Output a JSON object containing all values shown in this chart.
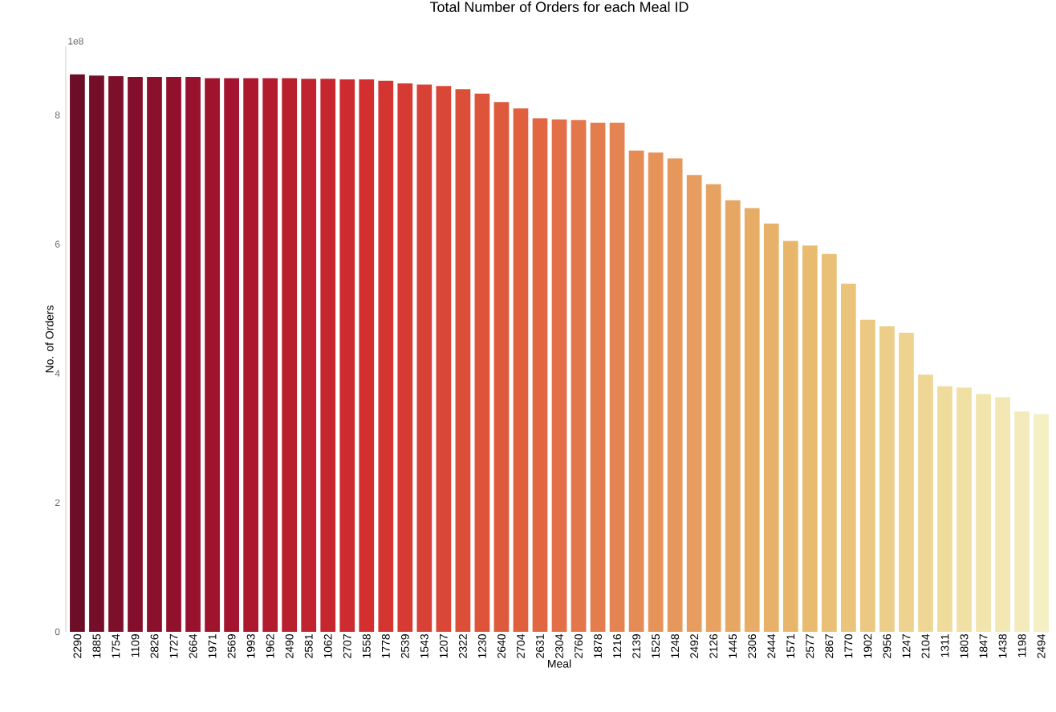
{
  "chart_data": {
    "type": "bar",
    "title": "Total Number of Orders for each Meal ID",
    "xlabel": "Meal",
    "ylabel": "No. of Orders",
    "annotations": [
      "1e8"
    ],
    "categories": [
      "2290",
      "1885",
      "1754",
      "1109",
      "2826",
      "1727",
      "2664",
      "1971",
      "2569",
      "1993",
      "1962",
      "2490",
      "2581",
      "1062",
      "2707",
      "1558",
      "1778",
      "2539",
      "1543",
      "1207",
      "2322",
      "1230",
      "2640",
      "2704",
      "2631",
      "2304",
      "2760",
      "1878",
      "1216",
      "2139",
      "1525",
      "1248",
      "2492",
      "2126",
      "1445",
      "2306",
      "2444",
      "1571",
      "2577",
      "2867",
      "1770",
      "1902",
      "2956",
      "1247",
      "2104",
      "1311",
      "1803",
      "1847",
      "1438",
      "1198",
      "2494"
    ],
    "values": [
      8.63,
      8.61,
      8.6,
      8.59,
      8.59,
      8.59,
      8.59,
      8.57,
      8.57,
      8.57,
      8.57,
      8.57,
      8.56,
      8.56,
      8.55,
      8.55,
      8.53,
      8.49,
      8.47,
      8.45,
      8.4,
      8.33,
      8.2,
      8.1,
      7.95,
      7.93,
      7.92,
      7.88,
      7.88,
      7.45,
      7.42,
      7.33,
      7.07,
      6.93,
      6.68,
      6.56,
      6.32,
      6.05,
      5.98,
      5.85,
      5.39,
      4.83,
      4.73,
      4.63,
      3.98,
      3.8,
      3.78,
      3.68,
      3.63,
      3.41,
      3.37
    ],
    "colors": [
      "#6e0d28",
      "#750e29",
      "#7c0f2a",
      "#830f2b",
      "#8a102b",
      "#91112c",
      "#98122d",
      "#9f132d",
      "#a5142e",
      "#ac182e",
      "#b21c2e",
      "#b9202e",
      "#c0242f",
      "#c6272f",
      "#cd2b2f",
      "#d32f2f",
      "#d53531",
      "#d63b33",
      "#d84135",
      "#d94737",
      "#db4e38",
      "#dd543a",
      "#de5a3c",
      "#e0603e",
      "#e16742",
      "#e26f46",
      "#e3764a",
      "#e37d4e",
      "#e48452",
      "#e58c56",
      "#e6935a",
      "#e6985c",
      "#e69d5f",
      "#e7a261",
      "#e7a764",
      "#e7ac66",
      "#e7b169",
      "#e8b66b",
      "#e8bb6e",
      "#e9c075",
      "#eac47b",
      "#ebc982",
      "#ecce88",
      "#edd38f",
      "#eed795",
      "#efdc9c",
      "#f0e0a4",
      "#f1e4ac",
      "#f3e7b4",
      "#f4ebbc",
      "#f5efc4"
    ],
    "ylim": [
      0,
      9.06
    ],
    "yticks": [
      0,
      2,
      4,
      6,
      8
    ]
  }
}
